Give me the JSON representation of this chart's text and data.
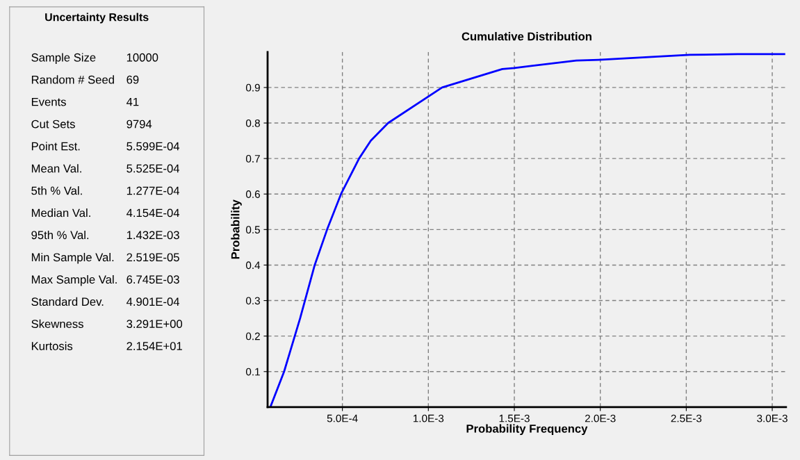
{
  "chart_data": [
    {
      "type": "other",
      "title": "Uncertainty Results",
      "annotations": [
        "Sample Size",
        "10000",
        "Random # Seed",
        "69",
        "Events",
        "41",
        "Cut Sets",
        "9794",
        "Point Est.",
        "5.599E-04",
        "Mean Val.",
        "5.525E-04",
        "5th % Val.",
        "1.277E-04",
        "Median Val.",
        "4.154E-04",
        "95th % Val.",
        "1.432E-03",
        "Min Sample Val.",
        "2.519E-05",
        "Max Sample Val.",
        "6.745E-03",
        "Standard Dev.",
        "4.901E-04",
        "Skewness",
        "3.291E+00",
        "Kurtosis",
        "2.154E+01"
      ]
    },
    {
      "type": "line",
      "title": "Cumulative Distribution",
      "xlabel": "Probability Frequency",
      "ylabel": "Probability",
      "x": [
        8.1e-05,
        0.000161,
        0.000254,
        0.000339,
        0.000411,
        0.000492,
        0.000597,
        0.000665,
        0.000766,
        0.00108,
        0.00143,
        0.0015,
        0.00186,
        0.00199,
        0.0023,
        0.00252,
        0.0028,
        0.00307
      ],
      "series": [
        {
          "color": "#0000ff",
          "values": [
            0.0,
            0.1,
            0.25,
            0.4,
            0.5,
            0.6,
            0.7,
            0.75,
            0.8,
            0.9,
            0.952,
            0.955,
            0.976,
            0.978,
            0.986,
            0.992,
            0.994,
            0.994
          ]
        }
      ],
      "xlim": [
        6.5e-05,
        0.00308
      ],
      "ylim": [
        0,
        1.0
      ],
      "xticks": [
        {
          "value": 0.0005,
          "label": "5.0E-4"
        },
        {
          "value": 0.001,
          "label": "1.0E-3"
        },
        {
          "value": 0.0015,
          "label": "1.5E-3"
        },
        {
          "value": 0.002,
          "label": "2.0E-3"
        },
        {
          "value": 0.0025,
          "label": "2.5E-3"
        },
        {
          "value": 0.003,
          "label": "3.0E-3"
        }
      ],
      "yticks": [
        0.1,
        0.2,
        0.3,
        0.4,
        0.5,
        0.6,
        0.7,
        0.8,
        0.9
      ],
      "grid": true
    }
  ]
}
